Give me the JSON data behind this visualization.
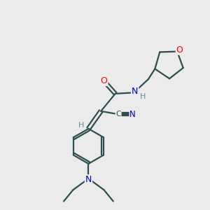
{
  "background_color": "#ebebeb",
  "bond_color": "#2f4f4f",
  "atom_colors": {
    "O": "#ff0000",
    "N": "#0000cd",
    "C": "#2f4f4f",
    "H": "#5f8f8f"
  },
  "lw": 1.6
}
